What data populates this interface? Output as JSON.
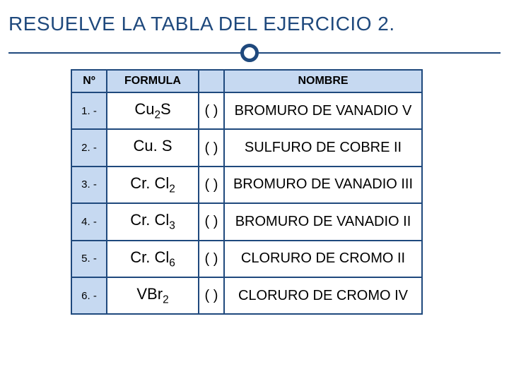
{
  "title": "RESUELVE LA TABLA DEL EJERCICIO 2.",
  "colors": {
    "accent": "#1f497d",
    "header_bg": "#c6d9f1",
    "page_bg": "#ffffff",
    "text": "#000000"
  },
  "table": {
    "columns": [
      "Nº",
      "FORMULA",
      "NOMBRE"
    ],
    "paren": "( )",
    "rows": [
      {
        "n": "1. -",
        "formula_main": "Cu",
        "formula_sub": "2",
        "formula_tail": "S",
        "name": "BROMURO DE VANADIO V"
      },
      {
        "n": "2. -",
        "formula_main": "Cu. S",
        "formula_sub": "",
        "formula_tail": "",
        "name": "SULFURO DE COBRE II"
      },
      {
        "n": "3. -",
        "formula_main": "Cr. Cl",
        "formula_sub": "2",
        "formula_tail": "",
        "name": "BROMURO DE VANADIO III"
      },
      {
        "n": "4. -",
        "formula_main": "Cr. Cl",
        "formula_sub": "3",
        "formula_tail": "",
        "name": "BROMURO DE VANADIO II"
      },
      {
        "n": "5. -",
        "formula_main": "Cr. Cl",
        "formula_sub": "6",
        "formula_tail": "",
        "name": "CLORURO DE CROMO II"
      },
      {
        "n": "6. -",
        "formula_main": "VBr",
        "formula_sub": "2",
        "formula_tail": "",
        "name": "CLORURO DE CROMO IV"
      }
    ]
  },
  "typography": {
    "title_fontsize": 28,
    "header_fontsize": 16,
    "formula_fontsize": 22,
    "name_fontsize": 20
  }
}
